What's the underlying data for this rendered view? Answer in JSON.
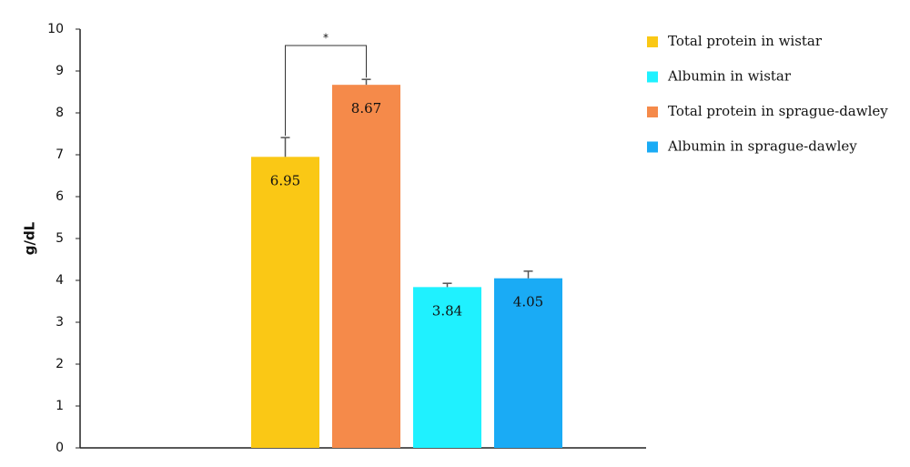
{
  "chart_data": {
    "type": "bar",
    "ylabel": "g/dL",
    "annotation": "*",
    "ylim": [
      0,
      10
    ],
    "yticks": [
      0,
      1,
      2,
      3,
      4,
      5,
      6,
      7,
      8,
      9,
      10
    ],
    "series": [
      {
        "name": "Total protein in wistar",
        "color": "#fac815",
        "values": [
          6.95
        ],
        "errors": [
          0.46
        ]
      },
      {
        "name": "Albumin in wistar",
        "color": "#1ff1ff",
        "values": [
          3.84
        ],
        "errors": [
          0.09
        ]
      },
      {
        "name": "Total protein in sprague-dawley",
        "color": "#f58a4a",
        "values": [
          8.67
        ],
        "errors": [
          0.13
        ]
      },
      {
        "name": "Albumin in sprague-dawley",
        "color": "#1aabf5",
        "values": [
          4.05
        ],
        "errors": [
          0.17
        ]
      }
    ],
    "bar_order": [
      0,
      2,
      1,
      3
    ]
  }
}
